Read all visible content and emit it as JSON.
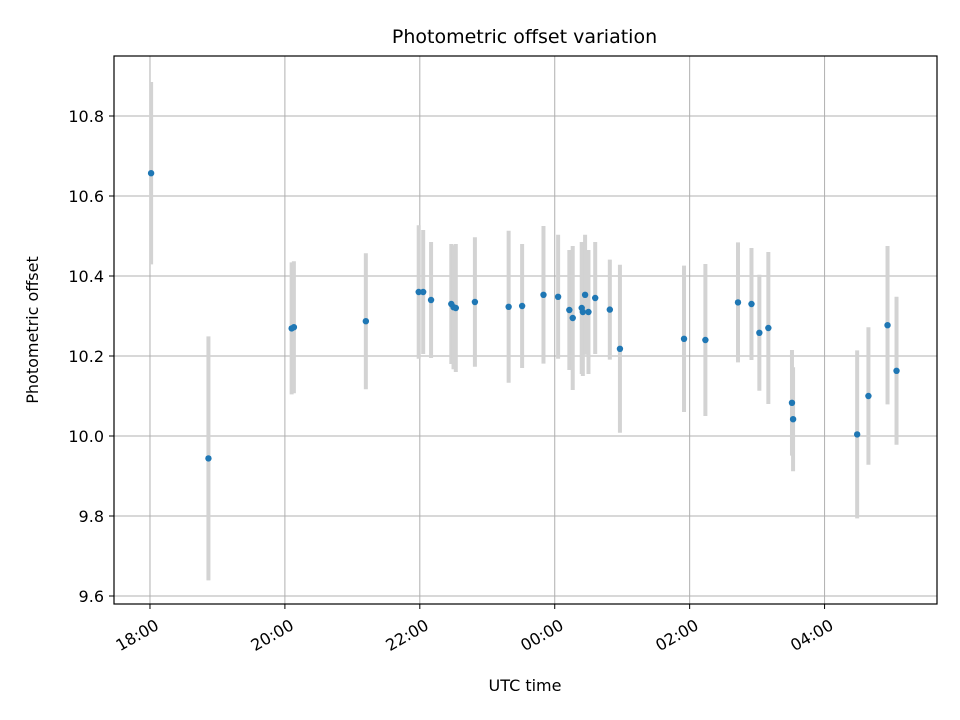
{
  "chart_data": {
    "type": "scatter",
    "title": "Photometric offset variation",
    "xlabel": "UTC time",
    "ylabel": "Photometric offset",
    "grid": true,
    "x_axis": {
      "type": "time",
      "range": [
        "17:28",
        "05:40"
      ],
      "ticks": [
        "18:00",
        "20:00",
        "22:00",
        "00:00",
        "02:00",
        "04:00"
      ]
    },
    "y_axis": {
      "range": [
        9.58,
        10.95
      ],
      "ticks": [
        9.6,
        9.8,
        10.0,
        10.2,
        10.4,
        10.6,
        10.8
      ]
    },
    "colors": {
      "point": "#1f77b4",
      "errorbar": "#d3d3d3",
      "grid": "#b0b0b0"
    },
    "points": [
      {
        "x": "18:01",
        "y": 10.657,
        "err": 0.228
      },
      {
        "x": "18:52",
        "y": 9.944,
        "err": 0.305
      },
      {
        "x": "20:06",
        "y": 10.269,
        "err": 0.165
      },
      {
        "x": "20:08",
        "y": 10.272,
        "err": 0.165
      },
      {
        "x": "21:12",
        "y": 10.287,
        "err": 0.17
      },
      {
        "x": "21:59",
        "y": 10.36,
        "err": 0.167
      },
      {
        "x": "22:03",
        "y": 10.36,
        "err": 0.155
      },
      {
        "x": "22:10",
        "y": 10.34,
        "err": 0.145
      },
      {
        "x": "22:28",
        "y": 10.33,
        "err": 0.15
      },
      {
        "x": "22:30",
        "y": 10.322,
        "err": 0.155
      },
      {
        "x": "22:32",
        "y": 10.32,
        "err": 0.16
      },
      {
        "x": "22:49",
        "y": 10.335,
        "err": 0.162
      },
      {
        "x": "23:19",
        "y": 10.323,
        "err": 0.19
      },
      {
        "x": "23:31",
        "y": 10.325,
        "err": 0.155
      },
      {
        "x": "23:50",
        "y": 10.353,
        "err": 0.172
      },
      {
        "x": "00:03",
        "y": 10.348,
        "err": 0.155
      },
      {
        "x": "00:13",
        "y": 10.315,
        "err": 0.15
      },
      {
        "x": "00:16",
        "y": 10.295,
        "err": 0.18
      },
      {
        "x": "00:24",
        "y": 10.32,
        "err": 0.165
      },
      {
        "x": "00:25",
        "y": 10.31,
        "err": 0.16
      },
      {
        "x": "00:27",
        "y": 10.353,
        "err": 0.15
      },
      {
        "x": "00:30",
        "y": 10.31,
        "err": 0.155
      },
      {
        "x": "00:36",
        "y": 10.345,
        "err": 0.14
      },
      {
        "x": "00:49",
        "y": 10.316,
        "err": 0.125
      },
      {
        "x": "00:58",
        "y": 10.218,
        "err": 0.21
      },
      {
        "x": "01:55",
        "y": 10.243,
        "err": 0.183
      },
      {
        "x": "02:14",
        "y": 10.24,
        "err": 0.19
      },
      {
        "x": "02:43",
        "y": 10.334,
        "err": 0.15
      },
      {
        "x": "02:55",
        "y": 10.33,
        "err": 0.14
      },
      {
        "x": "03:02",
        "y": 10.258,
        "err": 0.145
      },
      {
        "x": "03:10",
        "y": 10.27,
        "err": 0.19
      },
      {
        "x": "03:31",
        "y": 10.083,
        "err": 0.132
      },
      {
        "x": "03:32",
        "y": 10.042,
        "err": 0.13
      },
      {
        "x": "04:29",
        "y": 10.004,
        "err": 0.21
      },
      {
        "x": "04:39",
        "y": 10.1,
        "err": 0.172
      },
      {
        "x": "04:56",
        "y": 10.277,
        "err": 0.198
      },
      {
        "x": "05:04",
        "y": 10.163,
        "err": 0.185
      }
    ]
  }
}
